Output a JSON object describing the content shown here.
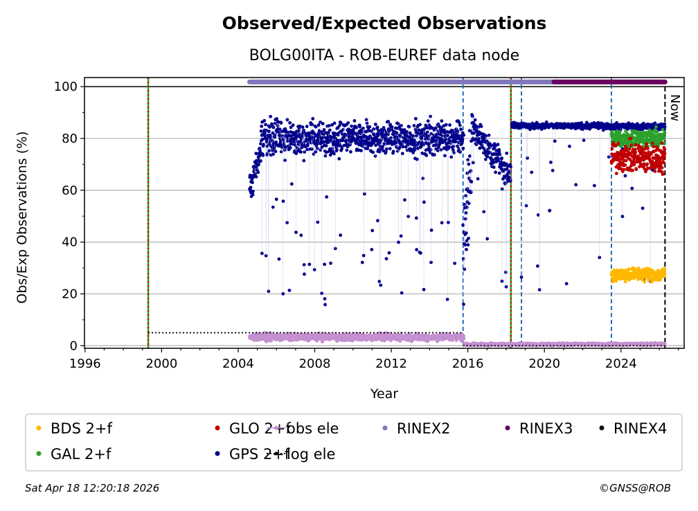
{
  "chart_data": {
    "type": "scatter",
    "title": "Observed/Expected Observations",
    "subtitle": "BOLG00ITA - ROB-EUREF data node",
    "xlabel": "Year",
    "ylabel": "Obs/Exp Observations (%)",
    "xlim": [
      1995.97,
      2027.3
    ],
    "ylim": [
      -1,
      103.5
    ],
    "xticks": [
      "1996",
      "2000",
      "2004",
      "2008",
      "2012",
      "2016",
      "2020",
      "2024"
    ],
    "yticks": [
      "0",
      "20",
      "40",
      "60",
      "80",
      "100"
    ],
    "grid": "horizontal",
    "now_label": "Now",
    "now_year": 2026.3,
    "series": [
      {
        "name": "GPS 2+f",
        "color": "#00008b",
        "segments": [
          {
            "from": 2004.6,
            "to": 2005.2,
            "start": 60,
            "end": 76,
            "spread": 4
          },
          {
            "from": 2005.2,
            "to": 2015.8,
            "start": 80,
            "end": 80,
            "spread": 4.5,
            "outliers": 0.06
          },
          {
            "from": 2015.8,
            "to": 2016.2,
            "start": 45,
            "end": 70,
            "spread": 12
          },
          {
            "from": 2016.2,
            "to": 2018.25,
            "start": 84,
            "end": 66,
            "spread": 4,
            "outliers": 0.05
          },
          {
            "from": 2018.3,
            "to": 2026.3,
            "start": 85,
            "end": 84.5,
            "spread": 0.8,
            "outliers": 0.04
          }
        ]
      },
      {
        "name": "GAL 2+f",
        "color": "#2ca02c",
        "segments": [
          {
            "from": 2023.5,
            "to": 2026.3,
            "start": 80,
            "end": 80,
            "spread": 2.5
          }
        ]
      },
      {
        "name": "GLO 2+f",
        "color": "#c00000",
        "segments": [
          {
            "from": 2023.5,
            "to": 2026.3,
            "start": 73,
            "end": 72,
            "spread": 4
          }
        ]
      },
      {
        "name": "BDS 2+f",
        "color": "#ffb800",
        "segments": [
          {
            "from": 2023.5,
            "to": 2026.3,
            "start": 27.5,
            "end": 27.5,
            "spread": 1.8
          }
        ]
      },
      {
        "name": "obs ele",
        "color": "#c490d1",
        "segments": [
          {
            "from": 2004.6,
            "to": 2015.8,
            "start": 3.3,
            "end": 3.3,
            "spread": 0.9
          },
          {
            "from": 2015.8,
            "to": 2026.3,
            "start": 0.5,
            "end": 0.6,
            "spread": 0.3
          }
        ]
      },
      {
        "name": "log ele",
        "color": "#000000",
        "steps": [
          {
            "from": 1999.3,
            "to": 2015.75,
            "value": 5
          },
          {
            "from": 2015.75,
            "to": 2026.3,
            "value": 0
          }
        ]
      },
      {
        "name": "RINEX2",
        "color": "#8078bc",
        "from": 2004.6,
        "to": 2020.5,
        "value": 101.8
      },
      {
        "name": "RINEX3",
        "color": "#6a005f",
        "from": 2020.5,
        "to": 2026.3,
        "value": 101.8
      },
      {
        "name": "RINEX4",
        "color": "#1a0a1a"
      }
    ],
    "event_lines": [
      {
        "year": 1999.3,
        "style": "red-green"
      },
      {
        "year": 2018.25,
        "style": "red-green"
      },
      {
        "year": 2015.75,
        "style": "blue-dashed"
      },
      {
        "year": 2018.8,
        "style": "blue-dashed"
      },
      {
        "year": 2023.5,
        "style": "blue-dashed"
      }
    ],
    "legend": {
      "placement": "bottom",
      "entries": [
        {
          "label": "BDS 2+f",
          "color": "#ffb800",
          "marker": "dot"
        },
        {
          "label": "GLO 2+f",
          "color": "#c00000",
          "marker": "dot"
        },
        {
          "label": "obs ele",
          "color": "#c490d1",
          "marker": "line-dot"
        },
        {
          "label": "RINEX2",
          "color": "#8078bc",
          "marker": "dot"
        },
        {
          "label": "RINEX3",
          "color": "#6a005f",
          "marker": "dot"
        },
        {
          "label": "RINEX4",
          "color": "#1a0a1a",
          "marker": "dot"
        },
        {
          "label": "GAL 2+f",
          "color": "#2ca02c",
          "marker": "dot"
        },
        {
          "label": "GPS 2+f",
          "color": "#00008b",
          "marker": "dot"
        },
        {
          "label": "log ele",
          "color": "#000000",
          "marker": "dotted-line"
        }
      ]
    }
  },
  "footer": {
    "timestamp": "Sat Apr 18 12:20:18 2026",
    "credit": "©GNSS@ROB"
  }
}
